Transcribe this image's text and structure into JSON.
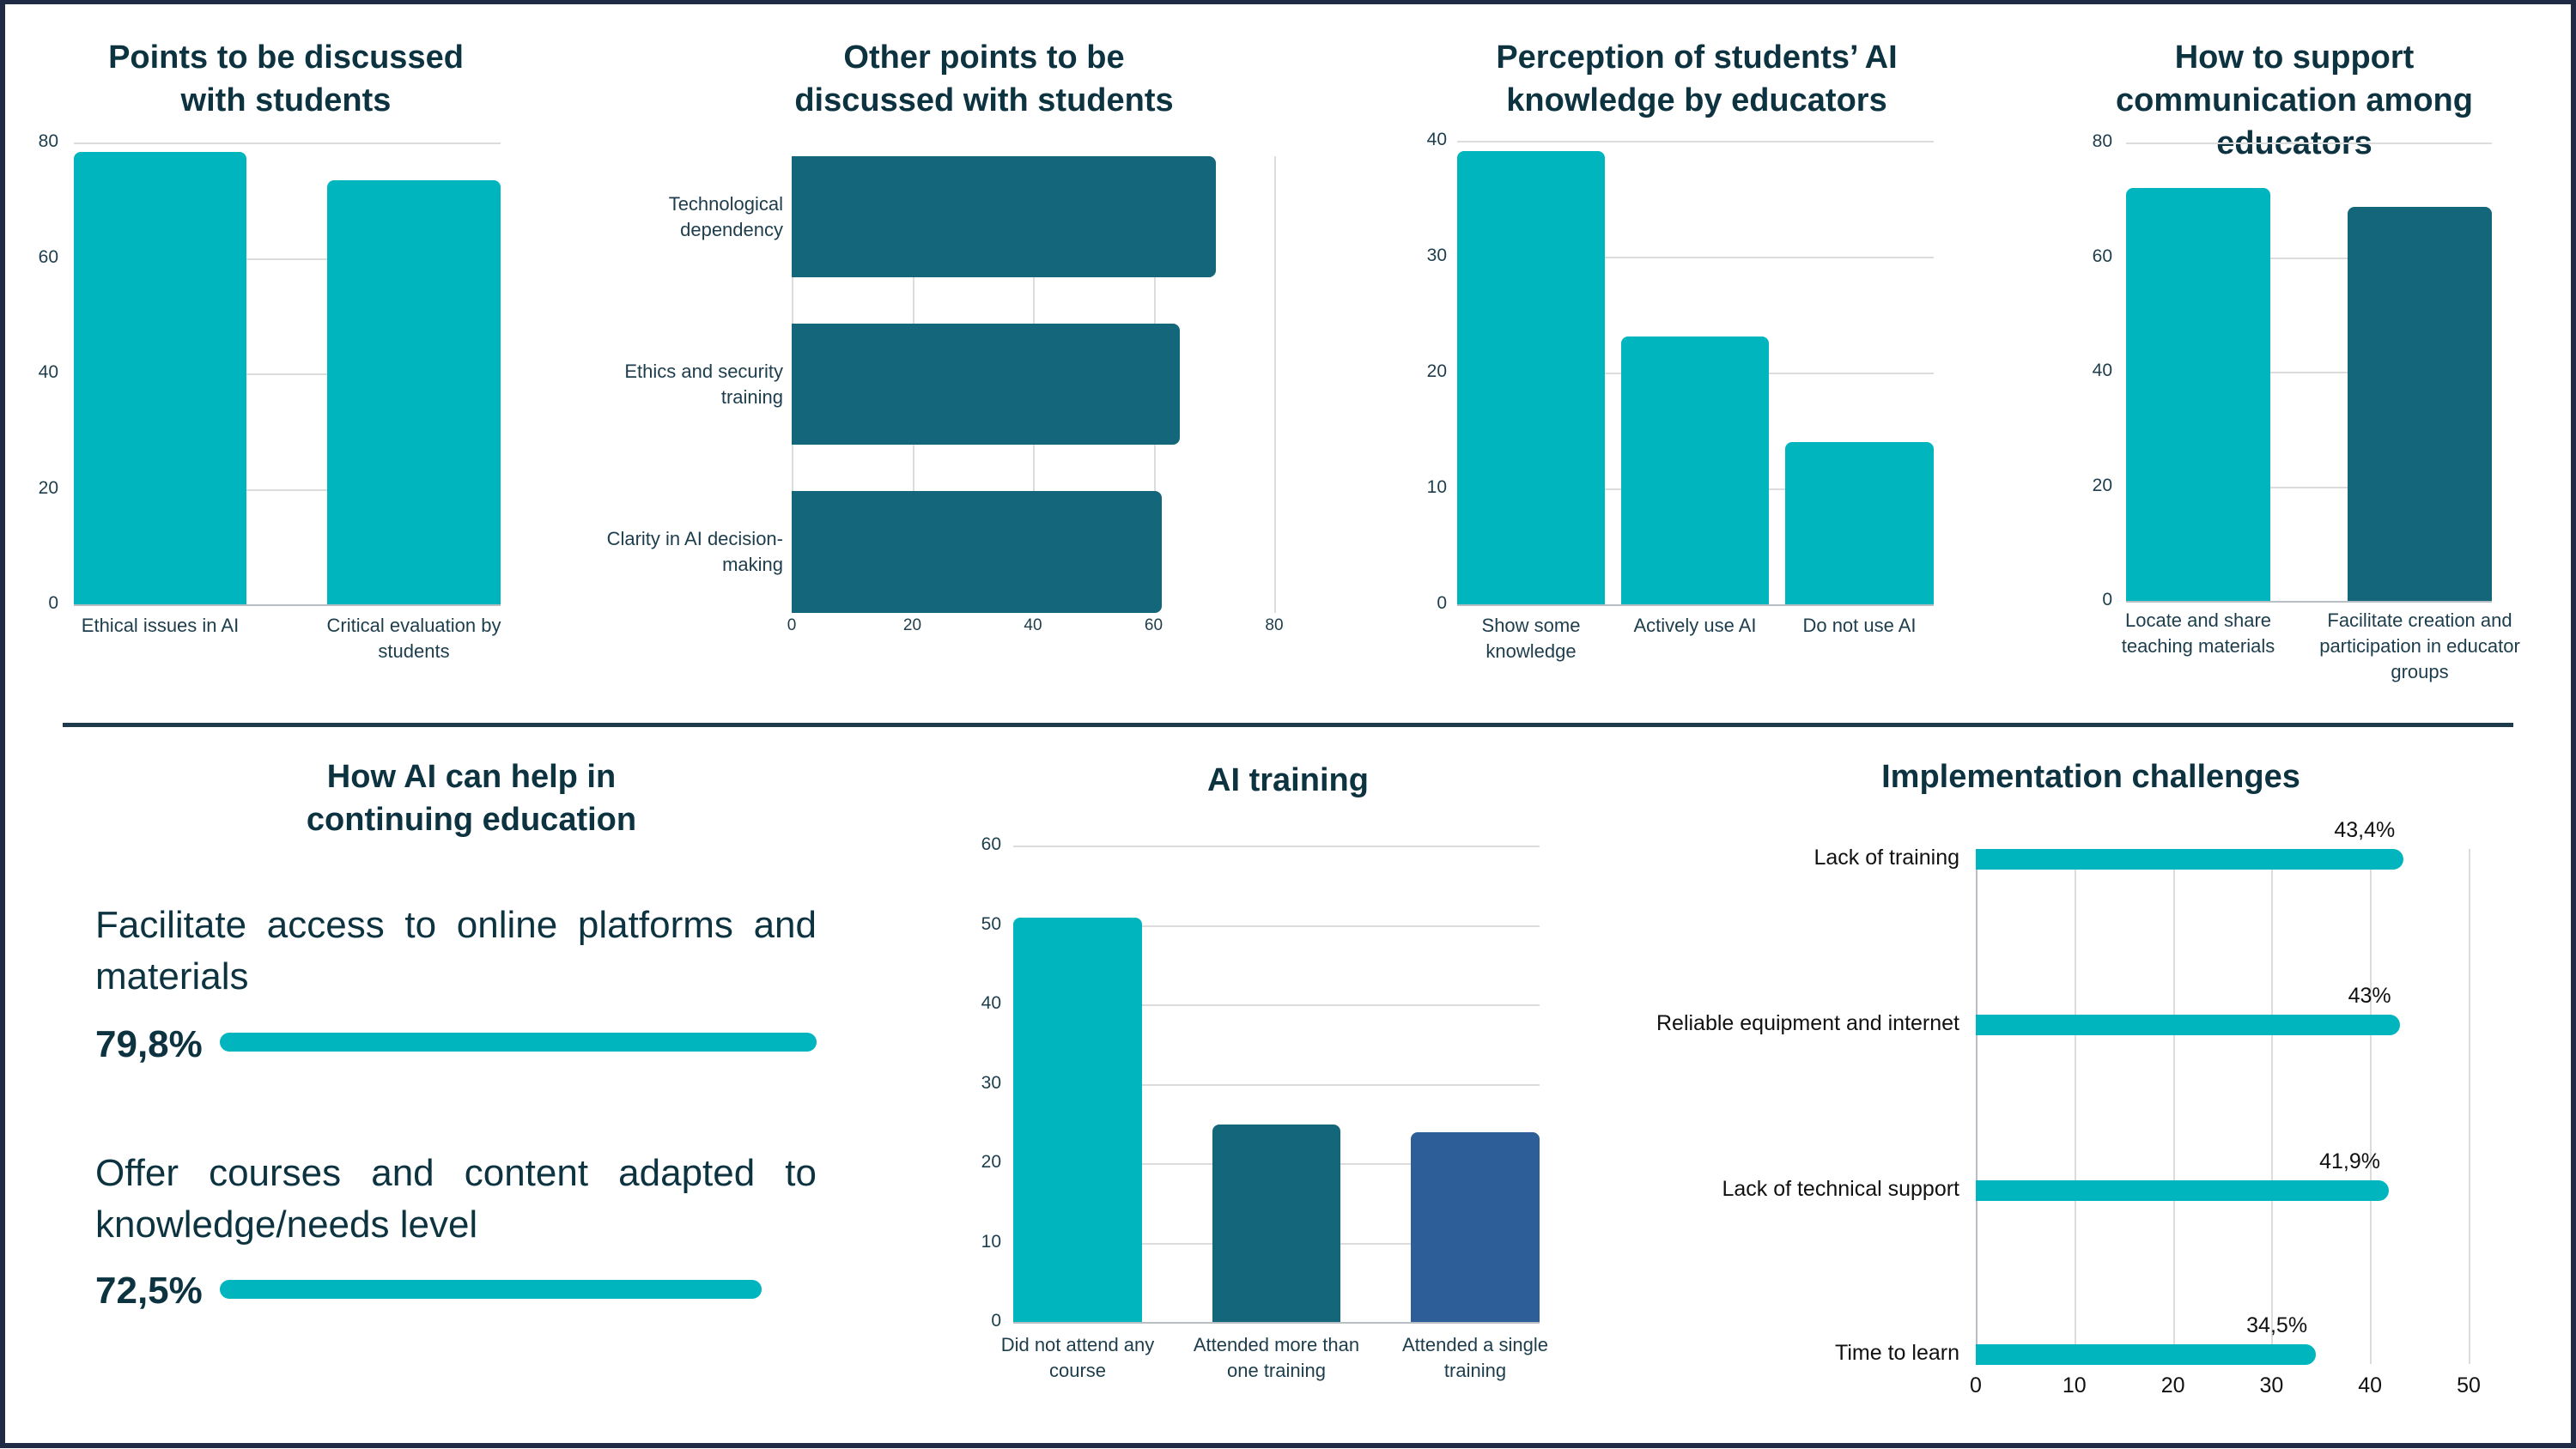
{
  "colors": {
    "teal": "#00b5bd",
    "dark_teal": "#14677a",
    "blue": "#2e5e97",
    "title": "#0d3341"
  },
  "chart_data": [
    {
      "type": "bar",
      "title": "Points to be discussed with students",
      "categories": [
        "Ethical issues in AI",
        "Critical evaluation by students"
      ],
      "values": [
        78.3,
        73.5
      ],
      "colors": [
        "#00b5bd",
        "#00b5bd"
      ],
      "ylim": [
        0,
        80
      ],
      "yticks": [
        "0",
        "20",
        "40",
        "60",
        "80"
      ],
      "grid": true
    },
    {
      "type": "bar",
      "orientation": "horizontal",
      "title": "Other points to be discussed with students",
      "categories": [
        "Technological dependency",
        "Ethics and security training",
        "Clarity in AI decision-making"
      ],
      "values": [
        70.3,
        64.4,
        61.3
      ],
      "colors": [
        "#14677a",
        "#14677a",
        "#14677a"
      ],
      "xlim": [
        0,
        80
      ],
      "xticks": [
        "0",
        "20",
        "40",
        "60",
        "80"
      ],
      "grid": true
    },
    {
      "type": "bar",
      "title": "Perception of students’ AI knowledge by educators",
      "categories": [
        "Show some knowledge",
        "Actively use AI",
        "Do not use AI"
      ],
      "values": [
        39.1,
        23.1,
        14.0
      ],
      "colors": [
        "#00b5bd",
        "#00b5bd",
        "#00b5bd"
      ],
      "ylim": [
        0,
        40
      ],
      "yticks": [
        "0",
        "10",
        "20",
        "30",
        "40"
      ],
      "grid": true
    },
    {
      "type": "bar",
      "title": "How to support communication among educators",
      "categories": [
        "Locate and share teaching materials",
        "Facilitate creation and participation in educator groups"
      ],
      "values": [
        72.1,
        68.7
      ],
      "colors": [
        "#00b5bd",
        "#14677a"
      ],
      "ylim": [
        0,
        80
      ],
      "yticks": [
        "0",
        "20",
        "40",
        "60",
        "80"
      ],
      "grid": true
    },
    {
      "type": "bar",
      "orientation": "horizontal",
      "title": "How AI can help in continuing education",
      "categories": [
        "Facilitate access to online platforms and materials",
        "Offer courses and content adapted to knowledge/needs level"
      ],
      "values": [
        79.8,
        72.5
      ],
      "labels": [
        "79,8%",
        "72,5%"
      ],
      "colors": [
        "#00b5bd",
        "#00b5bd"
      ]
    },
    {
      "type": "bar",
      "title": "AI training",
      "categories": [
        "Did not attend any course",
        "Attended more than one training",
        "Attended a single training"
      ],
      "values": [
        50.9,
        24.9,
        23.9
      ],
      "colors": [
        "#00b5bd",
        "#14677a",
        "#2e5e97"
      ],
      "ylim": [
        0,
        60
      ],
      "yticks": [
        "0",
        "10",
        "20",
        "30",
        "40",
        "50",
        "60"
      ],
      "grid": true
    },
    {
      "type": "bar",
      "orientation": "horizontal",
      "title": "Implementation challenges",
      "categories": [
        "Lack of training",
        "Reliable equipment and internet",
        "Lack of technical support",
        "Time to learn"
      ],
      "values": [
        43.4,
        43,
        41.9,
        34.5
      ],
      "labels": [
        "43,4%",
        "43%",
        "41,9%",
        "34,5%"
      ],
      "colors": [
        "#00b5bd",
        "#00b5bd",
        "#00b5bd",
        "#00b5bd"
      ],
      "xlim": [
        0,
        50
      ],
      "xticks": [
        "0",
        "10",
        "20",
        "30",
        "40",
        "50"
      ],
      "grid": true
    }
  ]
}
